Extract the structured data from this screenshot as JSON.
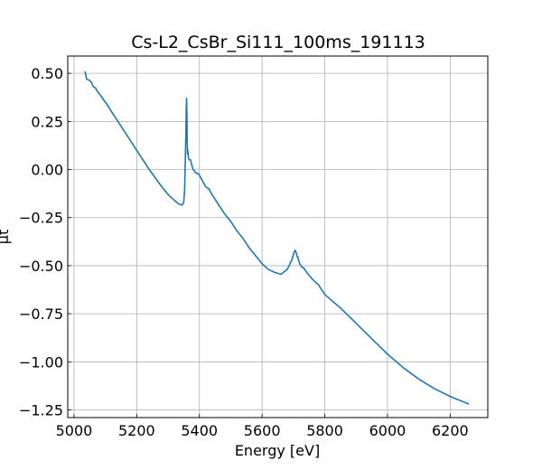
{
  "chart_data": {
    "type": "line",
    "title": "Cs-L2_CsBr_Si111_100ms_191113",
    "xlabel": "Energy [eV]",
    "ylabel": "μt",
    "xlim": [
      4980,
      6320
    ],
    "ylim": [
      -1.29,
      0.59
    ],
    "grid": true,
    "legend": "none",
    "x_ticks": [
      5000,
      5200,
      5400,
      5600,
      5800,
      6000,
      6200
    ],
    "x_tick_labels": [
      "5000",
      "5200",
      "5400",
      "5600",
      "5800",
      "6000",
      "6200"
    ],
    "y_ticks": [
      0.5,
      0.25,
      0.0,
      -0.25,
      -0.5,
      -0.75,
      -1.0,
      -1.25
    ],
    "y_tick_labels": [
      "0.50",
      "0.25",
      "0.00",
      "−0.25",
      "−0.50",
      "−0.75",
      "−1.00",
      "−1.25"
    ],
    "series": [
      {
        "color": "#1f77b4",
        "x": [
          5035,
          5038,
          5040,
          5048,
          5055,
          5062,
          5068,
          5075,
          5085,
          5095,
          5105,
          5120,
          5140,
          5160,
          5180,
          5200,
          5220,
          5240,
          5260,
          5280,
          5300,
          5320,
          5335,
          5345,
          5350,
          5353,
          5355,
          5357,
          5358,
          5359,
          5360,
          5361,
          5362,
          5363,
          5365,
          5368,
          5372,
          5376,
          5380,
          5385,
          5390,
          5395,
          5400,
          5410,
          5420,
          5430,
          5440,
          5460,
          5480,
          5500,
          5520,
          5540,
          5560,
          5580,
          5600,
          5620,
          5640,
          5660,
          5680,
          5695,
          5702,
          5706,
          5708,
          5710,
          5712,
          5714,
          5716,
          5718,
          5720,
          5724,
          5728,
          5732,
          5736,
          5740,
          5745,
          5750,
          5760,
          5780,
          5800,
          5850,
          5900,
          5950,
          6000,
          6050,
          6100,
          6150,
          6200,
          6230,
          6260
        ],
        "y": [
          0.51,
          0.49,
          0.47,
          0.465,
          0.455,
          0.43,
          0.425,
          0.405,
          0.385,
          0.36,
          0.34,
          0.3,
          0.25,
          0.2,
          0.15,
          0.1,
          0.05,
          0.0,
          -0.045,
          -0.09,
          -0.13,
          -0.16,
          -0.18,
          -0.185,
          -0.17,
          -0.1,
          0.05,
          0.2,
          0.32,
          0.37,
          0.3,
          0.15,
          0.08,
          0.1,
          0.06,
          0.05,
          0.05,
          0.02,
          0.0,
          -0.01,
          -0.02,
          -0.02,
          -0.03,
          -0.06,
          -0.09,
          -0.1,
          -0.13,
          -0.18,
          -0.23,
          -0.27,
          -0.32,
          -0.36,
          -0.41,
          -0.45,
          -0.49,
          -0.52,
          -0.535,
          -0.545,
          -0.52,
          -0.47,
          -0.43,
          -0.42,
          -0.43,
          -0.44,
          -0.455,
          -0.455,
          -0.47,
          -0.48,
          -0.49,
          -0.5,
          -0.51,
          -0.51,
          -0.52,
          -0.53,
          -0.54,
          -0.55,
          -0.57,
          -0.6,
          -0.65,
          -0.72,
          -0.8,
          -0.88,
          -0.96,
          -1.03,
          -1.09,
          -1.14,
          -1.18,
          -1.2,
          -1.22
        ]
      }
    ]
  }
}
